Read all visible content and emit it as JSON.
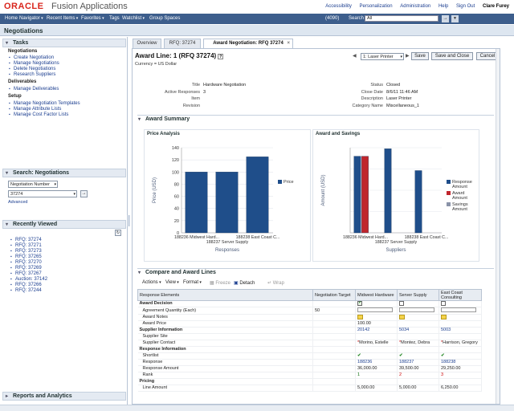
{
  "brand": {
    "oracle": "ORACLE",
    "app": "Fusion Applications"
  },
  "top_links": {
    "accessibility": "Accessibility",
    "personalization": "Personalization",
    "administration": "Administration",
    "help": "Help",
    "signout": "Sign Out",
    "user": "Clare Furey"
  },
  "nav": {
    "home": "Home",
    "navigator": "Navigator",
    "recent": "Recent Items",
    "favorites": "Favorites",
    "tags": "Tags",
    "watchlist": "Watchlist",
    "group_spaces": "Group Spaces",
    "count": "(4090)",
    "search_label": "Search",
    "search_scope": "All"
  },
  "page_title": "Negotiations",
  "left": {
    "tasks_header": "Tasks",
    "groups": [
      {
        "name": "Negotiations",
        "items": [
          "Create Negotiation",
          "Manage Negotiations",
          "Delete Negotiations",
          "Research Suppliers"
        ]
      },
      {
        "name": "Deliverables",
        "items": [
          "Manage Deliverables"
        ]
      },
      {
        "name": "Setup",
        "items": [
          "Manage Negotiation Templates",
          "Manage Attribute Lists",
          "Manage Cost Factor Lists"
        ]
      }
    ],
    "search_header": "Search: Negotiations",
    "search_field": "Negotiation Number",
    "search_value": "37274",
    "advanced": "Advanced",
    "recent_header": "Recently Viewed",
    "recent": [
      "RFQ: 37274",
      "RFQ: 37271",
      "RFQ: 37273",
      "RFQ: 37265",
      "RFQ: 37270",
      "RFQ: 37269",
      "RFQ: 37267",
      "Auction: 37142",
      "RFQ: 37266",
      "RFQ: 37244"
    ],
    "reports_header": "Reports and Analytics"
  },
  "tabs": [
    "Overview",
    "RFQ: 37274",
    "Award Negotiation: RFQ 37274"
  ],
  "header": {
    "title": "Award Line: 1 (RFQ 37274)",
    "currency": "Currency = US Dollar",
    "printer": "1: Laser Printer",
    "save": "Save",
    "save_close": "Save and Close",
    "cancel": "Cancel"
  },
  "details": {
    "title_lbl": "Title",
    "title_val": "Hardware Negotiation",
    "resp_lbl": "Active Responses",
    "resp_val": "3",
    "item_lbl": "Item",
    "item_val": "",
    "rev_lbl": "Revision",
    "rev_val": "",
    "status_lbl": "Status",
    "status_val": "Closed",
    "close_lbl": "Close Date",
    "close_val": "8/6/11 11:46 AM",
    "desc_lbl": "Description",
    "desc_val": "Laser Printer",
    "cat_lbl": "Category Name",
    "cat_val": "Miscellaneous_1"
  },
  "award_summary": "Award Summary",
  "chart_data": [
    {
      "type": "bar",
      "title": "Price Analysis",
      "categories": [
        "188236 Midwest Hard...",
        "188237 Server Supply",
        "188238 East Coast C..."
      ],
      "series": [
        {
          "name": "Price",
          "values": [
            100,
            100,
            125
          ]
        }
      ],
      "xlabel": "Responses",
      "ylabel": "Price (USD)",
      "ylim": [
        0,
        140
      ],
      "yticks": [
        0,
        20,
        40,
        60,
        80,
        100,
        120,
        140
      ],
      "legend": "right",
      "grid": true,
      "colors": {
        "Price": "#1f4e8a"
      }
    },
    {
      "type": "bar",
      "title": "Award and Savings",
      "categories": [
        "188236 Midwest Hard...",
        "188237 Server Supply",
        "188238 East Coast C..."
      ],
      "series": [
        {
          "name": "Response Amount",
          "values": [
            36000,
            39500,
            29250
          ]
        },
        {
          "name": "Award Amount",
          "values": [
            36000,
            0,
            0
          ]
        },
        {
          "name": "Savings Amount",
          "values": [
            0,
            0,
            0
          ]
        }
      ],
      "xlabel": "Suppliers",
      "ylabel": "Amount (USD)",
      "ylim": [
        0,
        40000
      ],
      "yticks": [],
      "legend": "right",
      "grid": true,
      "colors": {
        "Response Amount": "#1f4e8a",
        "Award Amount": "#c0262d",
        "Savings Amount": "#8a93a8"
      }
    }
  ],
  "compare": {
    "header": "Compare and Award Lines",
    "toolbar": {
      "actions": "Actions",
      "view": "View",
      "format": "Format",
      "freeze": "Freeze",
      "detach": "Detach",
      "wrap": "Wrap"
    },
    "columns": [
      "Response Elements",
      "Negotiation Target",
      "Midwest Hardware",
      "Server Supply",
      "East Coast Consulting"
    ],
    "rows": [
      {
        "label": "Award Decision",
        "type": "section",
        "target": "",
        "c1": "",
        "c2": "",
        "c3": ""
      },
      {
        "label": "Agreement Quantity (Each)",
        "type": "sub",
        "target": "50",
        "c1": "",
        "c2": "",
        "c3": ""
      },
      {
        "label": "Award Notes",
        "type": "sub",
        "target": "",
        "c1": "",
        "c2": "",
        "c3": ""
      },
      {
        "label": "Award Price",
        "type": "sub",
        "target": "",
        "c1": "100.00",
        "c2": "",
        "c3": ""
      },
      {
        "label": "Supplier Information",
        "type": "section",
        "target": "",
        "c1": "20142",
        "c2": "5034",
        "c3": "5003"
      },
      {
        "label": "Supplier Site",
        "type": "sub",
        "target": "",
        "c1": "",
        "c2": "",
        "c3": ""
      },
      {
        "label": "Supplier Contact",
        "type": "sub",
        "target": "",
        "c1": "Morino, Estelle",
        "c2": "Montez, Debra",
        "c3": "Harrison, Gregory"
      },
      {
        "label": "Response Information",
        "type": "section",
        "target": "",
        "c1": "",
        "c2": "",
        "c3": ""
      },
      {
        "label": "Shortlist",
        "type": "sub",
        "target": "",
        "c1": "✔",
        "c2": "✔",
        "c3": "✔"
      },
      {
        "label": "Response",
        "type": "sub",
        "target": "",
        "c1": "188236",
        "c2": "188237",
        "c3": "188238"
      },
      {
        "label": "Response Amount",
        "type": "sub",
        "target": "",
        "c1": "36,000.00",
        "c2": "39,500.00",
        "c3": "29,250.00"
      },
      {
        "label": "Rank",
        "type": "sub",
        "target": "",
        "c1": "1",
        "c2": "2",
        "c3": "3"
      },
      {
        "label": "Pricing",
        "type": "section",
        "target": "",
        "c1": "",
        "c2": "",
        "c3": ""
      },
      {
        "label": "Line Amount",
        "type": "sub",
        "target": "",
        "c1": "5,000.00",
        "c2": "5,000.00",
        "c3": "6,250.00"
      }
    ]
  }
}
